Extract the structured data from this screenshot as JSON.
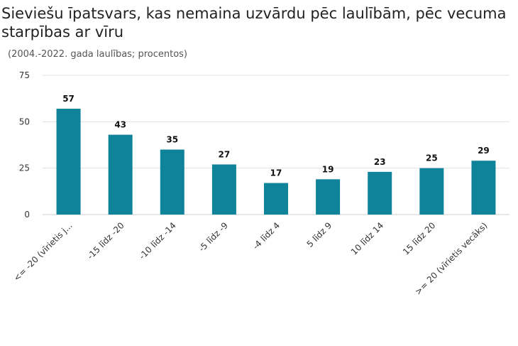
{
  "header": {
    "title": "Sieviešu īpatsvars, kas nemaina uzvārdu pēc laulībām, pēc vecuma starpības ar vīru",
    "subtitle": "(2004.-2022. gada laulības; procentos)"
  },
  "chart_data": {
    "type": "bar",
    "title": "Sieviešu īpatsvars, kas nemaina uzvārdu pēc laulībām, pēc vecuma starpības ar vīru",
    "subtitle": "(2004.-2022. gada laulības; procentos)",
    "categories": [
      "<= -20 (vīrietis j...",
      "-15 līdz -20",
      "-10 līdz -14",
      "-5 līdz -9",
      "-4 līdz 4",
      "5 līdz 9",
      "10 līdz 14",
      "15 līdz 20",
      ">= 20 (vīrietis vecāks)"
    ],
    "values": [
      57,
      43,
      35,
      27,
      17,
      19,
      23,
      25,
      29
    ],
    "yticks": [
      0,
      25,
      50,
      75
    ],
    "ylim": [
      0,
      75
    ],
    "xlabel": "",
    "ylabel": "",
    "grid": true,
    "bar_color": "#0e8399"
  }
}
